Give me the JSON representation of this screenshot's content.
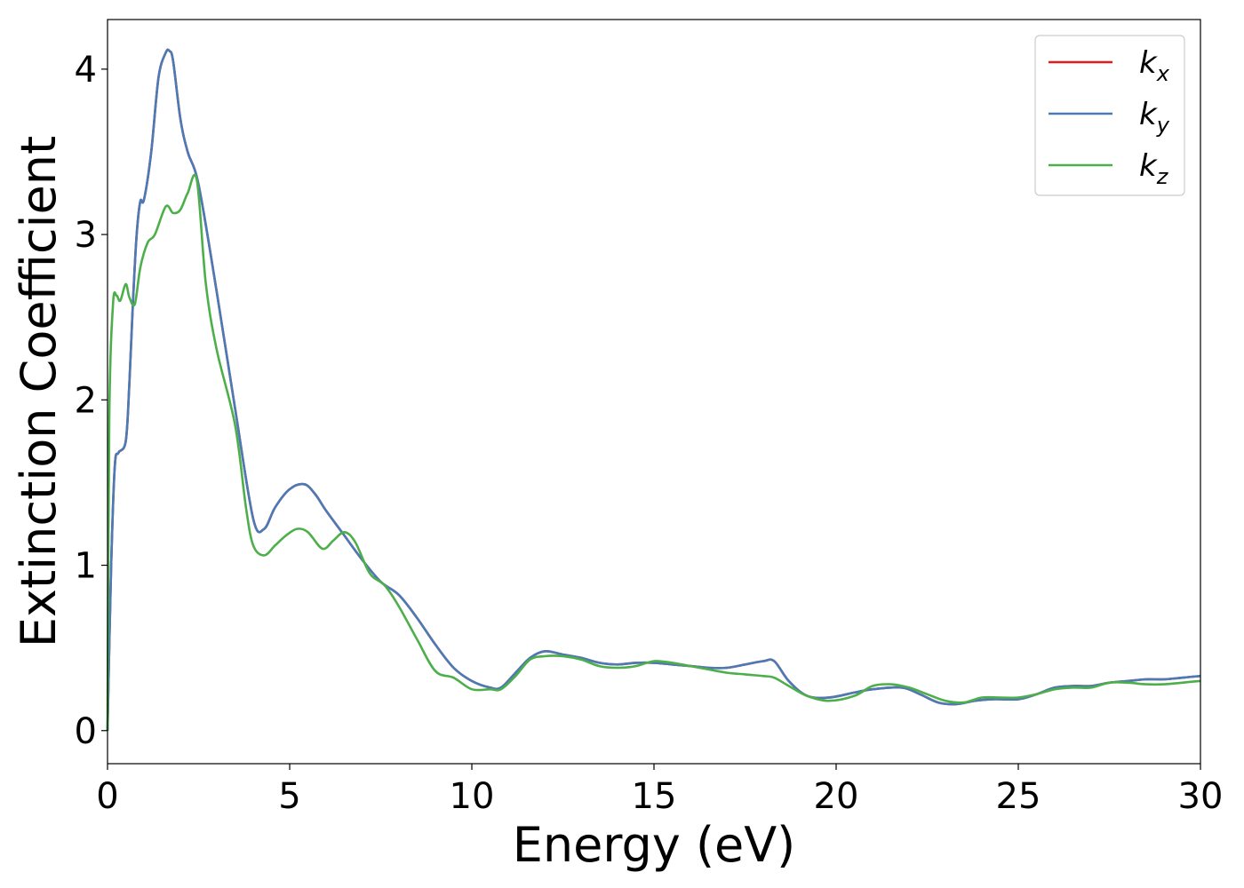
{
  "chart_data": {
    "type": "line",
    "title": "",
    "xlabel": "Energy (eV)",
    "ylabel": "Extinction Coefficient",
    "xlim": [
      0,
      30
    ],
    "ylim": [
      -0.2,
      4.3
    ],
    "xticks": [
      0,
      5,
      10,
      15,
      20,
      25,
      30
    ],
    "yticks": [
      0,
      1,
      2,
      3,
      4
    ],
    "grid": false,
    "legend_position": "top-right",
    "series": [
      {
        "name": "k_x",
        "label_main": "k",
        "label_sub": "x",
        "color": "#e41a1c",
        "x": [
          0,
          0.1,
          0.2,
          0.3,
          0.5,
          0.6,
          0.7,
          0.8,
          0.9,
          1.0,
          1.2,
          1.4,
          1.6,
          1.7,
          1.8,
          2.0,
          2.2,
          2.5,
          3.0,
          3.5,
          4.0,
          4.3,
          4.6,
          5.0,
          5.4,
          5.7,
          6.0,
          6.5,
          7.0,
          7.5,
          8.0,
          8.5,
          9.0,
          9.5,
          10.0,
          10.5,
          10.8,
          11.2,
          11.6,
          12.0,
          12.5,
          13.0,
          13.5,
          14.0,
          14.5,
          15.0,
          15.5,
          16.0,
          16.5,
          17.0,
          17.5,
          18.0,
          18.3,
          18.7,
          19.2,
          19.8,
          20.5,
          21.0,
          21.8,
          22.3,
          22.8,
          23.3,
          23.8,
          24.3,
          25.0,
          25.5,
          26.0,
          26.5,
          27.0,
          27.5,
          28.0,
          28.5,
          29.0,
          29.5,
          30.0
        ],
        "y": [
          0,
          1.0,
          1.6,
          1.68,
          1.75,
          2.1,
          2.6,
          3.0,
          3.2,
          3.21,
          3.5,
          3.95,
          4.1,
          4.11,
          4.05,
          3.7,
          3.5,
          3.3,
          2.65,
          1.95,
          1.28,
          1.22,
          1.35,
          1.46,
          1.49,
          1.43,
          1.33,
          1.18,
          1.03,
          0.9,
          0.82,
          0.68,
          0.52,
          0.38,
          0.3,
          0.26,
          0.26,
          0.35,
          0.44,
          0.48,
          0.46,
          0.44,
          0.41,
          0.4,
          0.41,
          0.41,
          0.4,
          0.39,
          0.38,
          0.38,
          0.4,
          0.42,
          0.42,
          0.3,
          0.21,
          0.2,
          0.23,
          0.25,
          0.26,
          0.22,
          0.17,
          0.16,
          0.18,
          0.19,
          0.19,
          0.22,
          0.26,
          0.27,
          0.27,
          0.29,
          0.3,
          0.31,
          0.31,
          0.32,
          0.33
        ]
      },
      {
        "name": "k_y",
        "label_main": "k",
        "label_sub": "y",
        "color": "#4a7bb7",
        "x": [
          0,
          0.1,
          0.2,
          0.3,
          0.5,
          0.6,
          0.7,
          0.8,
          0.9,
          1.0,
          1.2,
          1.4,
          1.6,
          1.7,
          1.8,
          2.0,
          2.2,
          2.5,
          3.0,
          3.5,
          4.0,
          4.3,
          4.6,
          5.0,
          5.4,
          5.7,
          6.0,
          6.5,
          7.0,
          7.5,
          8.0,
          8.5,
          9.0,
          9.5,
          10.0,
          10.5,
          10.8,
          11.2,
          11.6,
          12.0,
          12.5,
          13.0,
          13.5,
          14.0,
          14.5,
          15.0,
          15.5,
          16.0,
          16.5,
          17.0,
          17.5,
          18.0,
          18.3,
          18.7,
          19.2,
          19.8,
          20.5,
          21.0,
          21.8,
          22.3,
          22.8,
          23.3,
          23.8,
          24.3,
          25.0,
          25.5,
          26.0,
          26.5,
          27.0,
          27.5,
          28.0,
          28.5,
          29.0,
          29.5,
          30.0
        ],
        "y": [
          0,
          1.0,
          1.6,
          1.68,
          1.75,
          2.1,
          2.6,
          3.0,
          3.2,
          3.21,
          3.5,
          3.95,
          4.1,
          4.11,
          4.05,
          3.7,
          3.5,
          3.3,
          2.65,
          1.95,
          1.28,
          1.22,
          1.35,
          1.46,
          1.49,
          1.43,
          1.33,
          1.18,
          1.03,
          0.9,
          0.82,
          0.68,
          0.52,
          0.38,
          0.3,
          0.26,
          0.26,
          0.35,
          0.44,
          0.48,
          0.46,
          0.44,
          0.41,
          0.4,
          0.41,
          0.41,
          0.4,
          0.39,
          0.38,
          0.38,
          0.4,
          0.42,
          0.42,
          0.3,
          0.21,
          0.2,
          0.23,
          0.25,
          0.26,
          0.22,
          0.17,
          0.16,
          0.18,
          0.19,
          0.19,
          0.22,
          0.26,
          0.27,
          0.27,
          0.29,
          0.3,
          0.31,
          0.31,
          0.32,
          0.33
        ]
      },
      {
        "name": "k_z",
        "label_main": "k",
        "label_sub": "z",
        "color": "#4daf4a",
        "x": [
          0,
          0.05,
          0.15,
          0.25,
          0.35,
          0.5,
          0.6,
          0.75,
          0.9,
          1.1,
          1.3,
          1.6,
          1.8,
          2.0,
          2.2,
          2.45,
          2.7,
          3.0,
          3.5,
          3.8,
          4.0,
          4.3,
          4.6,
          4.9,
          5.2,
          5.5,
          5.9,
          6.2,
          6.5,
          6.8,
          7.2,
          7.6,
          8.0,
          8.5,
          9.0,
          9.5,
          10.0,
          10.5,
          10.8,
          11.2,
          11.6,
          12.0,
          12.5,
          13.0,
          13.5,
          14.0,
          14.5,
          15.0,
          15.5,
          16.0,
          16.5,
          17.0,
          17.5,
          18.0,
          18.3,
          18.7,
          19.2,
          19.8,
          20.5,
          21.0,
          21.5,
          22.0,
          22.5,
          23.0,
          23.5,
          24.0,
          24.5,
          25.0,
          25.5,
          26.0,
          26.5,
          27.0,
          27.5,
          28.0,
          28.5,
          29.0,
          29.5,
          30.0
        ],
        "y": [
          0,
          1.9,
          2.58,
          2.63,
          2.6,
          2.7,
          2.62,
          2.58,
          2.8,
          2.95,
          3.0,
          3.17,
          3.13,
          3.15,
          3.25,
          3.33,
          2.7,
          2.3,
          1.85,
          1.35,
          1.12,
          1.06,
          1.12,
          1.18,
          1.22,
          1.2,
          1.1,
          1.15,
          1.2,
          1.14,
          0.95,
          0.88,
          0.75,
          0.55,
          0.36,
          0.32,
          0.25,
          0.25,
          0.25,
          0.33,
          0.43,
          0.45,
          0.45,
          0.43,
          0.39,
          0.38,
          0.39,
          0.42,
          0.41,
          0.39,
          0.37,
          0.35,
          0.34,
          0.33,
          0.32,
          0.27,
          0.21,
          0.18,
          0.21,
          0.27,
          0.28,
          0.26,
          0.22,
          0.18,
          0.17,
          0.2,
          0.2,
          0.2,
          0.22,
          0.25,
          0.26,
          0.26,
          0.29,
          0.29,
          0.28,
          0.28,
          0.29,
          0.3
        ]
      }
    ]
  }
}
